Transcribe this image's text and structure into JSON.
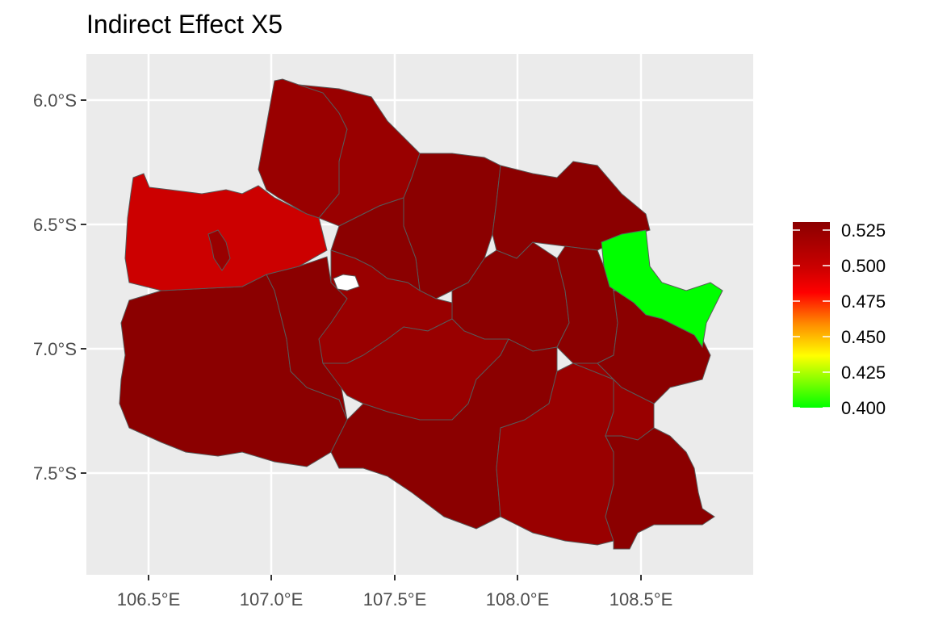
{
  "title": "Indirect Effect X5",
  "axes": {
    "x_ticks": [
      "106.5°E",
      "107.0°E",
      "107.5°E",
      "108.0°E",
      "108.5°E"
    ],
    "y_ticks": [
      "6.0°S",
      "6.5°S",
      "7.0°S",
      "7.5°S"
    ]
  },
  "legend": {
    "labels": [
      "0.525",
      "0.500",
      "0.475",
      "0.450",
      "0.425",
      "0.400"
    ],
    "colors": [
      "#8b0000",
      "#cc0000",
      "#ff0000",
      "#ff8c00",
      "#ffff00",
      "#00ff00"
    ],
    "placement": "right"
  },
  "map": {
    "region": "West Java",
    "lon_range": [
      106.25,
      108.95
    ],
    "lat_range": [
      -7.9,
      -5.8
    ],
    "colors": {
      "panel": "#ebebeb",
      "grid": "#ffffff",
      "border": "#595959",
      "dark_red": "#8b0000",
      "mid_red": "#990000",
      "bright_red": "#cc0000",
      "green": "#00ff00"
    }
  }
}
